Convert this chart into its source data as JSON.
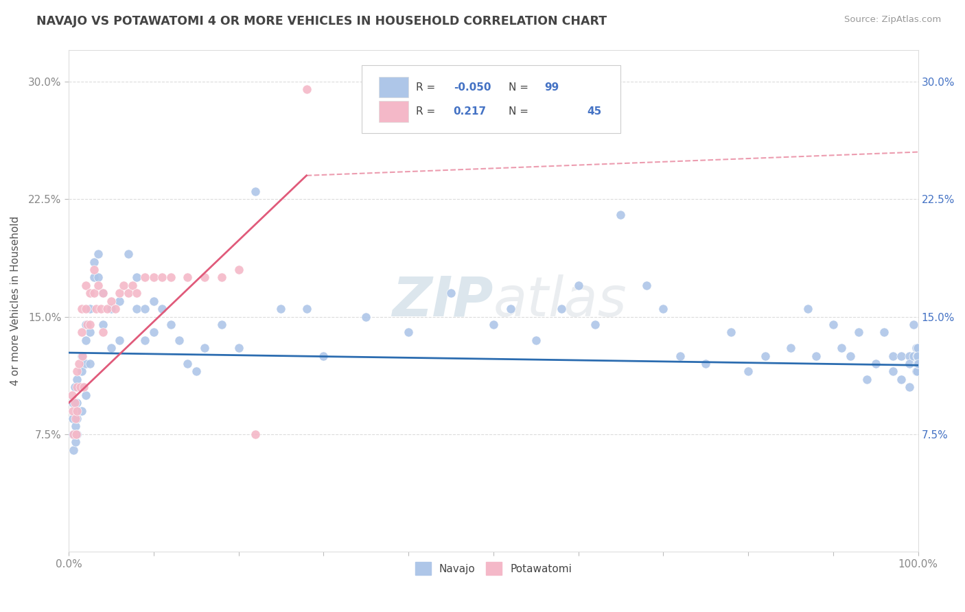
{
  "title": "NAVAJO VS POTAWATOMI 4 OR MORE VEHICLES IN HOUSEHOLD CORRELATION CHART",
  "source": "Source: ZipAtlas.com",
  "ylabel": "4 or more Vehicles in Household",
  "xlim": [
    0.0,
    1.0
  ],
  "ylim": [
    0.0,
    0.32
  ],
  "ytick_labels": [
    "7.5%",
    "15.0%",
    "22.5%",
    "30.0%"
  ],
  "ytick_vals": [
    0.075,
    0.15,
    0.225,
    0.3
  ],
  "r_navajo": -0.05,
  "n_navajo": 99,
  "r_potawatomi": 0.217,
  "n_potawatomi": 45,
  "navajo_color": "#aec6e8",
  "potawatomi_color": "#f4b8c8",
  "navajo_line_color": "#2b6cb0",
  "potawatomi_line_color": "#e05a7a",
  "background_color": "#ffffff",
  "grid_color": "#cccccc",
  "title_color": "#444444",
  "right_axis_color": "#4472c4",
  "watermark_color": "#c8d8e8",
  "navajo_x": [
    0.005,
    0.005,
    0.005,
    0.006,
    0.007,
    0.008,
    0.008,
    0.009,
    0.009,
    0.01,
    0.01,
    0.01,
    0.01,
    0.015,
    0.015,
    0.015,
    0.015,
    0.02,
    0.02,
    0.02,
    0.02,
    0.025,
    0.025,
    0.025,
    0.03,
    0.03,
    0.035,
    0.035,
    0.04,
    0.04,
    0.05,
    0.05,
    0.06,
    0.06,
    0.07,
    0.08,
    0.08,
    0.09,
    0.09,
    0.1,
    0.1,
    0.11,
    0.12,
    0.13,
    0.14,
    0.15,
    0.16,
    0.18,
    0.2,
    0.22,
    0.25,
    0.28,
    0.3,
    0.35,
    0.4,
    0.45,
    0.5,
    0.52,
    0.55,
    0.58,
    0.6,
    0.62,
    0.65,
    0.68,
    0.7,
    0.72,
    0.75,
    0.78,
    0.8,
    0.82,
    0.85,
    0.87,
    0.88,
    0.9,
    0.91,
    0.92,
    0.93,
    0.94,
    0.95,
    0.96,
    0.97,
    0.97,
    0.98,
    0.98,
    0.99,
    0.99,
    0.99,
    0.995,
    0.995,
    0.998,
    0.998,
    0.999,
    0.999,
    0.999,
    0.9995,
    0.9995,
    0.9998,
    0.9998,
    0.9999
  ],
  "navajo_y": [
    0.095,
    0.085,
    0.075,
    0.065,
    0.105,
    0.08,
    0.07,
    0.09,
    0.075,
    0.11,
    0.095,
    0.085,
    0.075,
    0.125,
    0.115,
    0.105,
    0.09,
    0.145,
    0.135,
    0.12,
    0.1,
    0.155,
    0.14,
    0.12,
    0.185,
    0.175,
    0.19,
    0.175,
    0.165,
    0.145,
    0.155,
    0.13,
    0.16,
    0.135,
    0.19,
    0.175,
    0.155,
    0.155,
    0.135,
    0.16,
    0.14,
    0.155,
    0.145,
    0.135,
    0.12,
    0.115,
    0.13,
    0.145,
    0.13,
    0.23,
    0.155,
    0.155,
    0.125,
    0.15,
    0.14,
    0.165,
    0.145,
    0.155,
    0.135,
    0.155,
    0.17,
    0.145,
    0.215,
    0.17,
    0.155,
    0.125,
    0.12,
    0.14,
    0.115,
    0.125,
    0.13,
    0.155,
    0.125,
    0.145,
    0.13,
    0.125,
    0.14,
    0.11,
    0.12,
    0.14,
    0.125,
    0.115,
    0.125,
    0.11,
    0.125,
    0.12,
    0.105,
    0.125,
    0.145,
    0.115,
    0.13,
    0.125,
    0.12,
    0.115,
    0.13,
    0.12,
    0.13,
    0.125,
    0.12
  ],
  "potawatomi_x": [
    0.004,
    0.005,
    0.006,
    0.007,
    0.008,
    0.009,
    0.01,
    0.01,
    0.01,
    0.012,
    0.014,
    0.015,
    0.015,
    0.016,
    0.018,
    0.02,
    0.02,
    0.022,
    0.025,
    0.025,
    0.03,
    0.03,
    0.032,
    0.035,
    0.038,
    0.04,
    0.04,
    0.045,
    0.05,
    0.055,
    0.06,
    0.065,
    0.07,
    0.075,
    0.08,
    0.09,
    0.1,
    0.11,
    0.12,
    0.14,
    0.16,
    0.18,
    0.2,
    0.22,
    0.28
  ],
  "potawatomi_y": [
    0.1,
    0.09,
    0.075,
    0.095,
    0.085,
    0.075,
    0.115,
    0.105,
    0.09,
    0.12,
    0.105,
    0.155,
    0.14,
    0.125,
    0.105,
    0.17,
    0.155,
    0.145,
    0.165,
    0.145,
    0.18,
    0.165,
    0.155,
    0.17,
    0.155,
    0.165,
    0.14,
    0.155,
    0.16,
    0.155,
    0.165,
    0.17,
    0.165,
    0.17,
    0.165,
    0.175,
    0.175,
    0.175,
    0.175,
    0.175,
    0.175,
    0.175,
    0.18,
    0.075,
    0.295
  ],
  "navajo_trend_x": [
    0.0,
    1.0
  ],
  "navajo_trend_y": [
    0.127,
    0.119
  ],
  "potawatomi_trend_x": [
    0.0,
    1.0
  ],
  "potawatomi_trend_y": [
    0.095,
    0.255
  ]
}
